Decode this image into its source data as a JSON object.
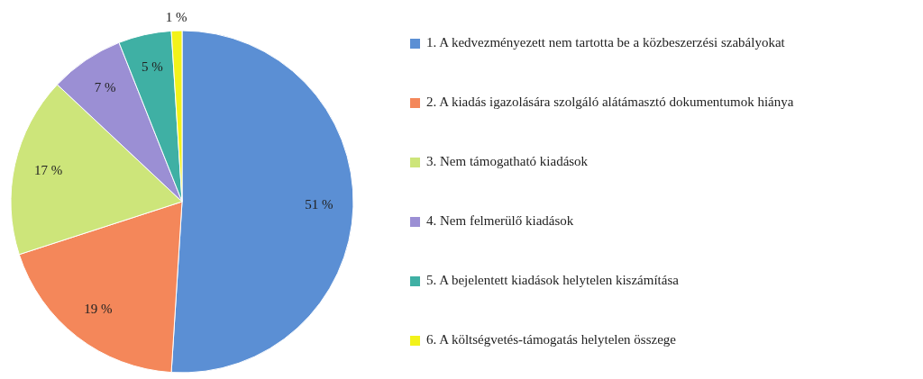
{
  "chart_data": {
    "type": "pie",
    "categories": [
      "1. A kedvezményezett nem tartotta be a közbeszerzési szabályokat",
      "2. A kiadás igazolására szolgáló alátámasztó dokumentumok hiánya",
      "3. Nem támogatható kiadások",
      "4. Nem felmerülő kiadások",
      "5. A bejelentett kiadások helytelen kiszámítása",
      "6. A költségvetés-támogatás helytelen összege"
    ],
    "values": [
      51,
      19,
      17,
      7,
      5,
      1
    ],
    "value_labels": [
      "51 %",
      "19 %",
      "17 %",
      "7 %",
      "5 %",
      "1 %"
    ],
    "colors": [
      "#5b8fd4",
      "#f4875a",
      "#cde57a",
      "#9b8fd4",
      "#3fb0a4",
      "#f2f21a"
    ],
    "legend": "right"
  }
}
